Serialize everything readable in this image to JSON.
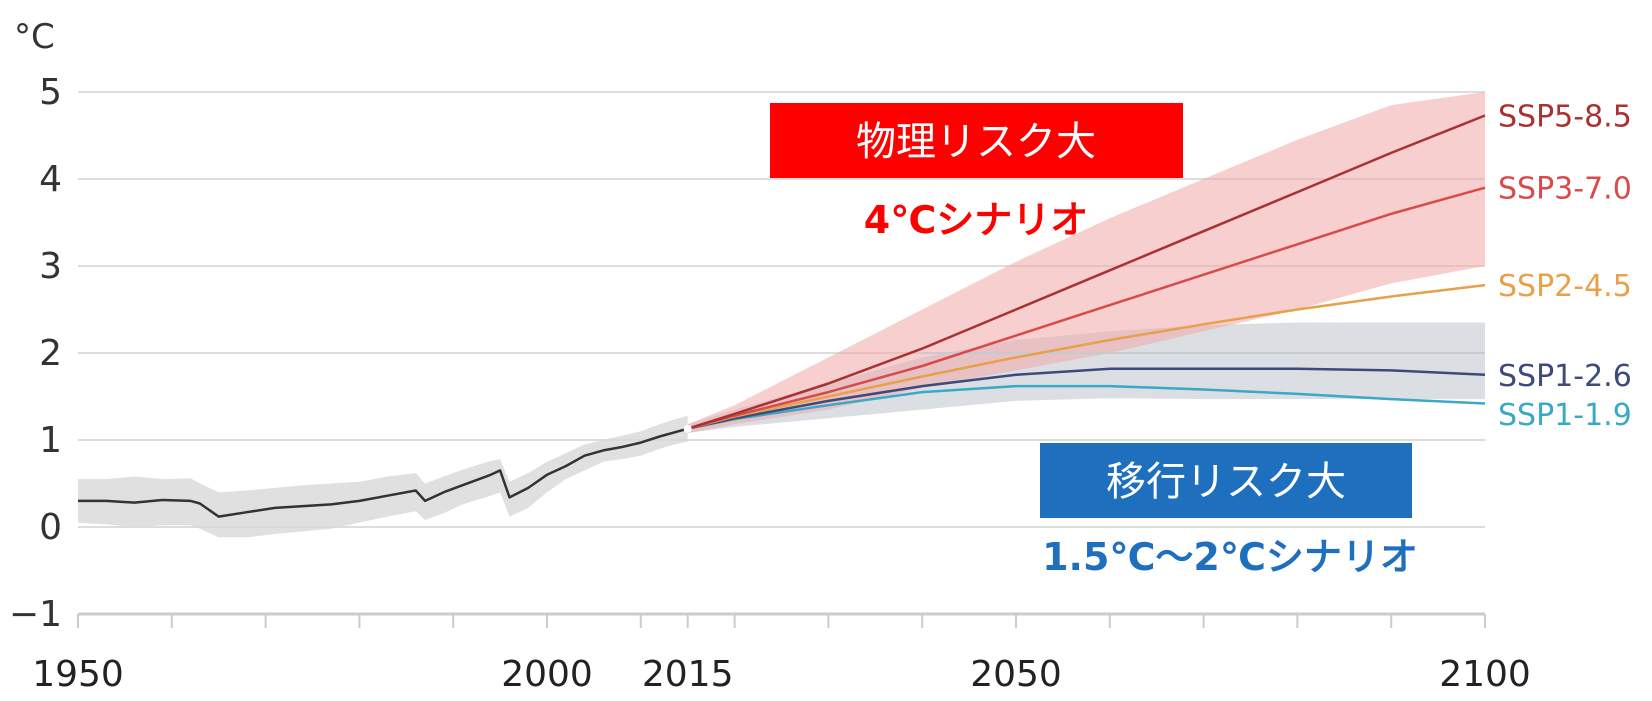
{
  "chart_data": {
    "type": "line",
    "unit_label": "°C",
    "xlim": [
      1950,
      2100
    ],
    "ylim": [
      -1,
      5
    ],
    "x_ticks": [
      1950,
      2000,
      2015,
      2050,
      2100
    ],
    "y_ticks": [
      5,
      4,
      3,
      2,
      1,
      0,
      -1
    ],
    "y_tick_labels": [
      "5",
      "4",
      "3",
      "2",
      "1",
      "0",
      "−1"
    ],
    "grid": true,
    "history": {
      "x": [
        1950,
        1953,
        1956,
        1959,
        1962,
        1963,
        1965,
        1968,
        1971,
        1974,
        1977,
        1980,
        1983,
        1986,
        1987,
        1989,
        1991,
        1994,
        1995,
        1996,
        1998,
        2000,
        2002,
        2004,
        2006,
        2008,
        2010,
        2012,
        2014,
        2015
      ],
      "y": [
        0.3,
        0.3,
        0.28,
        0.31,
        0.3,
        0.27,
        0.12,
        0.17,
        0.22,
        0.24,
        0.26,
        0.3,
        0.36,
        0.42,
        0.3,
        0.4,
        0.48,
        0.6,
        0.65,
        0.34,
        0.45,
        0.6,
        0.7,
        0.82,
        0.88,
        0.92,
        0.97,
        1.04,
        1.1,
        1.13
      ],
      "band_upper": [
        0.55,
        0.55,
        0.58,
        0.55,
        0.56,
        0.5,
        0.4,
        0.42,
        0.45,
        0.48,
        0.5,
        0.52,
        0.58,
        0.62,
        0.5,
        0.58,
        0.66,
        0.76,
        0.78,
        0.52,
        0.62,
        0.75,
        0.85,
        0.95,
        1.0,
        1.05,
        1.1,
        1.18,
        1.25,
        1.28
      ],
      "band_lower": [
        0.05,
        0.03,
        0.0,
        0.02,
        0.02,
        -0.02,
        -0.12,
        -0.12,
        -0.08,
        -0.05,
        -0.02,
        0.05,
        0.12,
        0.18,
        0.08,
        0.16,
        0.26,
        0.36,
        0.4,
        0.12,
        0.22,
        0.4,
        0.55,
        0.65,
        0.75,
        0.78,
        0.82,
        0.9,
        0.96,
        0.98
      ]
    },
    "scenario_x": [
      2015,
      2020,
      2030,
      2040,
      2050,
      2060,
      2070,
      2080,
      2090,
      2100
    ],
    "series": [
      {
        "name": "SSP5-8.5",
        "color": "#a83232",
        "values": [
          1.13,
          1.3,
          1.65,
          2.05,
          2.5,
          2.95,
          3.4,
          3.85,
          4.3,
          4.73
        ]
      },
      {
        "name": "SSP3-7.0",
        "color": "#d94a4a",
        "values": [
          1.13,
          1.28,
          1.55,
          1.85,
          2.2,
          2.55,
          2.9,
          3.25,
          3.6,
          3.9
        ]
      },
      {
        "name": "SSP2-4.5",
        "color": "#e8a04a",
        "values": [
          1.13,
          1.27,
          1.5,
          1.73,
          1.95,
          2.15,
          2.33,
          2.5,
          2.65,
          2.78
        ]
      },
      {
        "name": "SSP1-2.6",
        "color": "#3d4a7a",
        "values": [
          1.13,
          1.25,
          1.45,
          1.62,
          1.75,
          1.82,
          1.82,
          1.82,
          1.8,
          1.75
        ]
      },
      {
        "name": "SSP1-1.9",
        "color": "#3aa8c8",
        "values": [
          1.13,
          1.24,
          1.4,
          1.55,
          1.62,
          1.62,
          1.58,
          1.53,
          1.47,
          1.42
        ]
      }
    ],
    "high_band": {
      "color": "#f0a8a8",
      "upper": [
        1.18,
        1.4,
        1.95,
        2.5,
        3.05,
        3.55,
        4.0,
        4.45,
        4.85,
        5.0
      ],
      "lower": [
        1.08,
        1.18,
        1.35,
        1.6,
        1.8,
        2.0,
        2.25,
        2.5,
        2.8,
        3.0
      ]
    },
    "low_band": {
      "color": "#c8ced6",
      "upper": [
        1.18,
        1.35,
        1.65,
        1.95,
        2.15,
        2.25,
        2.32,
        2.35,
        2.35,
        2.35
      ],
      "lower": [
        1.08,
        1.15,
        1.25,
        1.35,
        1.45,
        1.48,
        1.47,
        1.47,
        1.47,
        1.47
      ]
    },
    "flat_line": {
      "y": 2.0,
      "color": "#c7cacf",
      "x_start": 2040
    }
  },
  "annotations": {
    "physical_risk": {
      "label": "物理リスク大",
      "color": "#ff0000"
    },
    "scenario_4c": {
      "label": "4℃シナリオ",
      "color": "#ff0000"
    },
    "transition_risk": {
      "label": "移行リスク大",
      "color": "#1f6fbf"
    },
    "scenario_15_2c": {
      "label": "1.5℃〜2℃シナリオ",
      "color": "#1f6fbf"
    }
  }
}
